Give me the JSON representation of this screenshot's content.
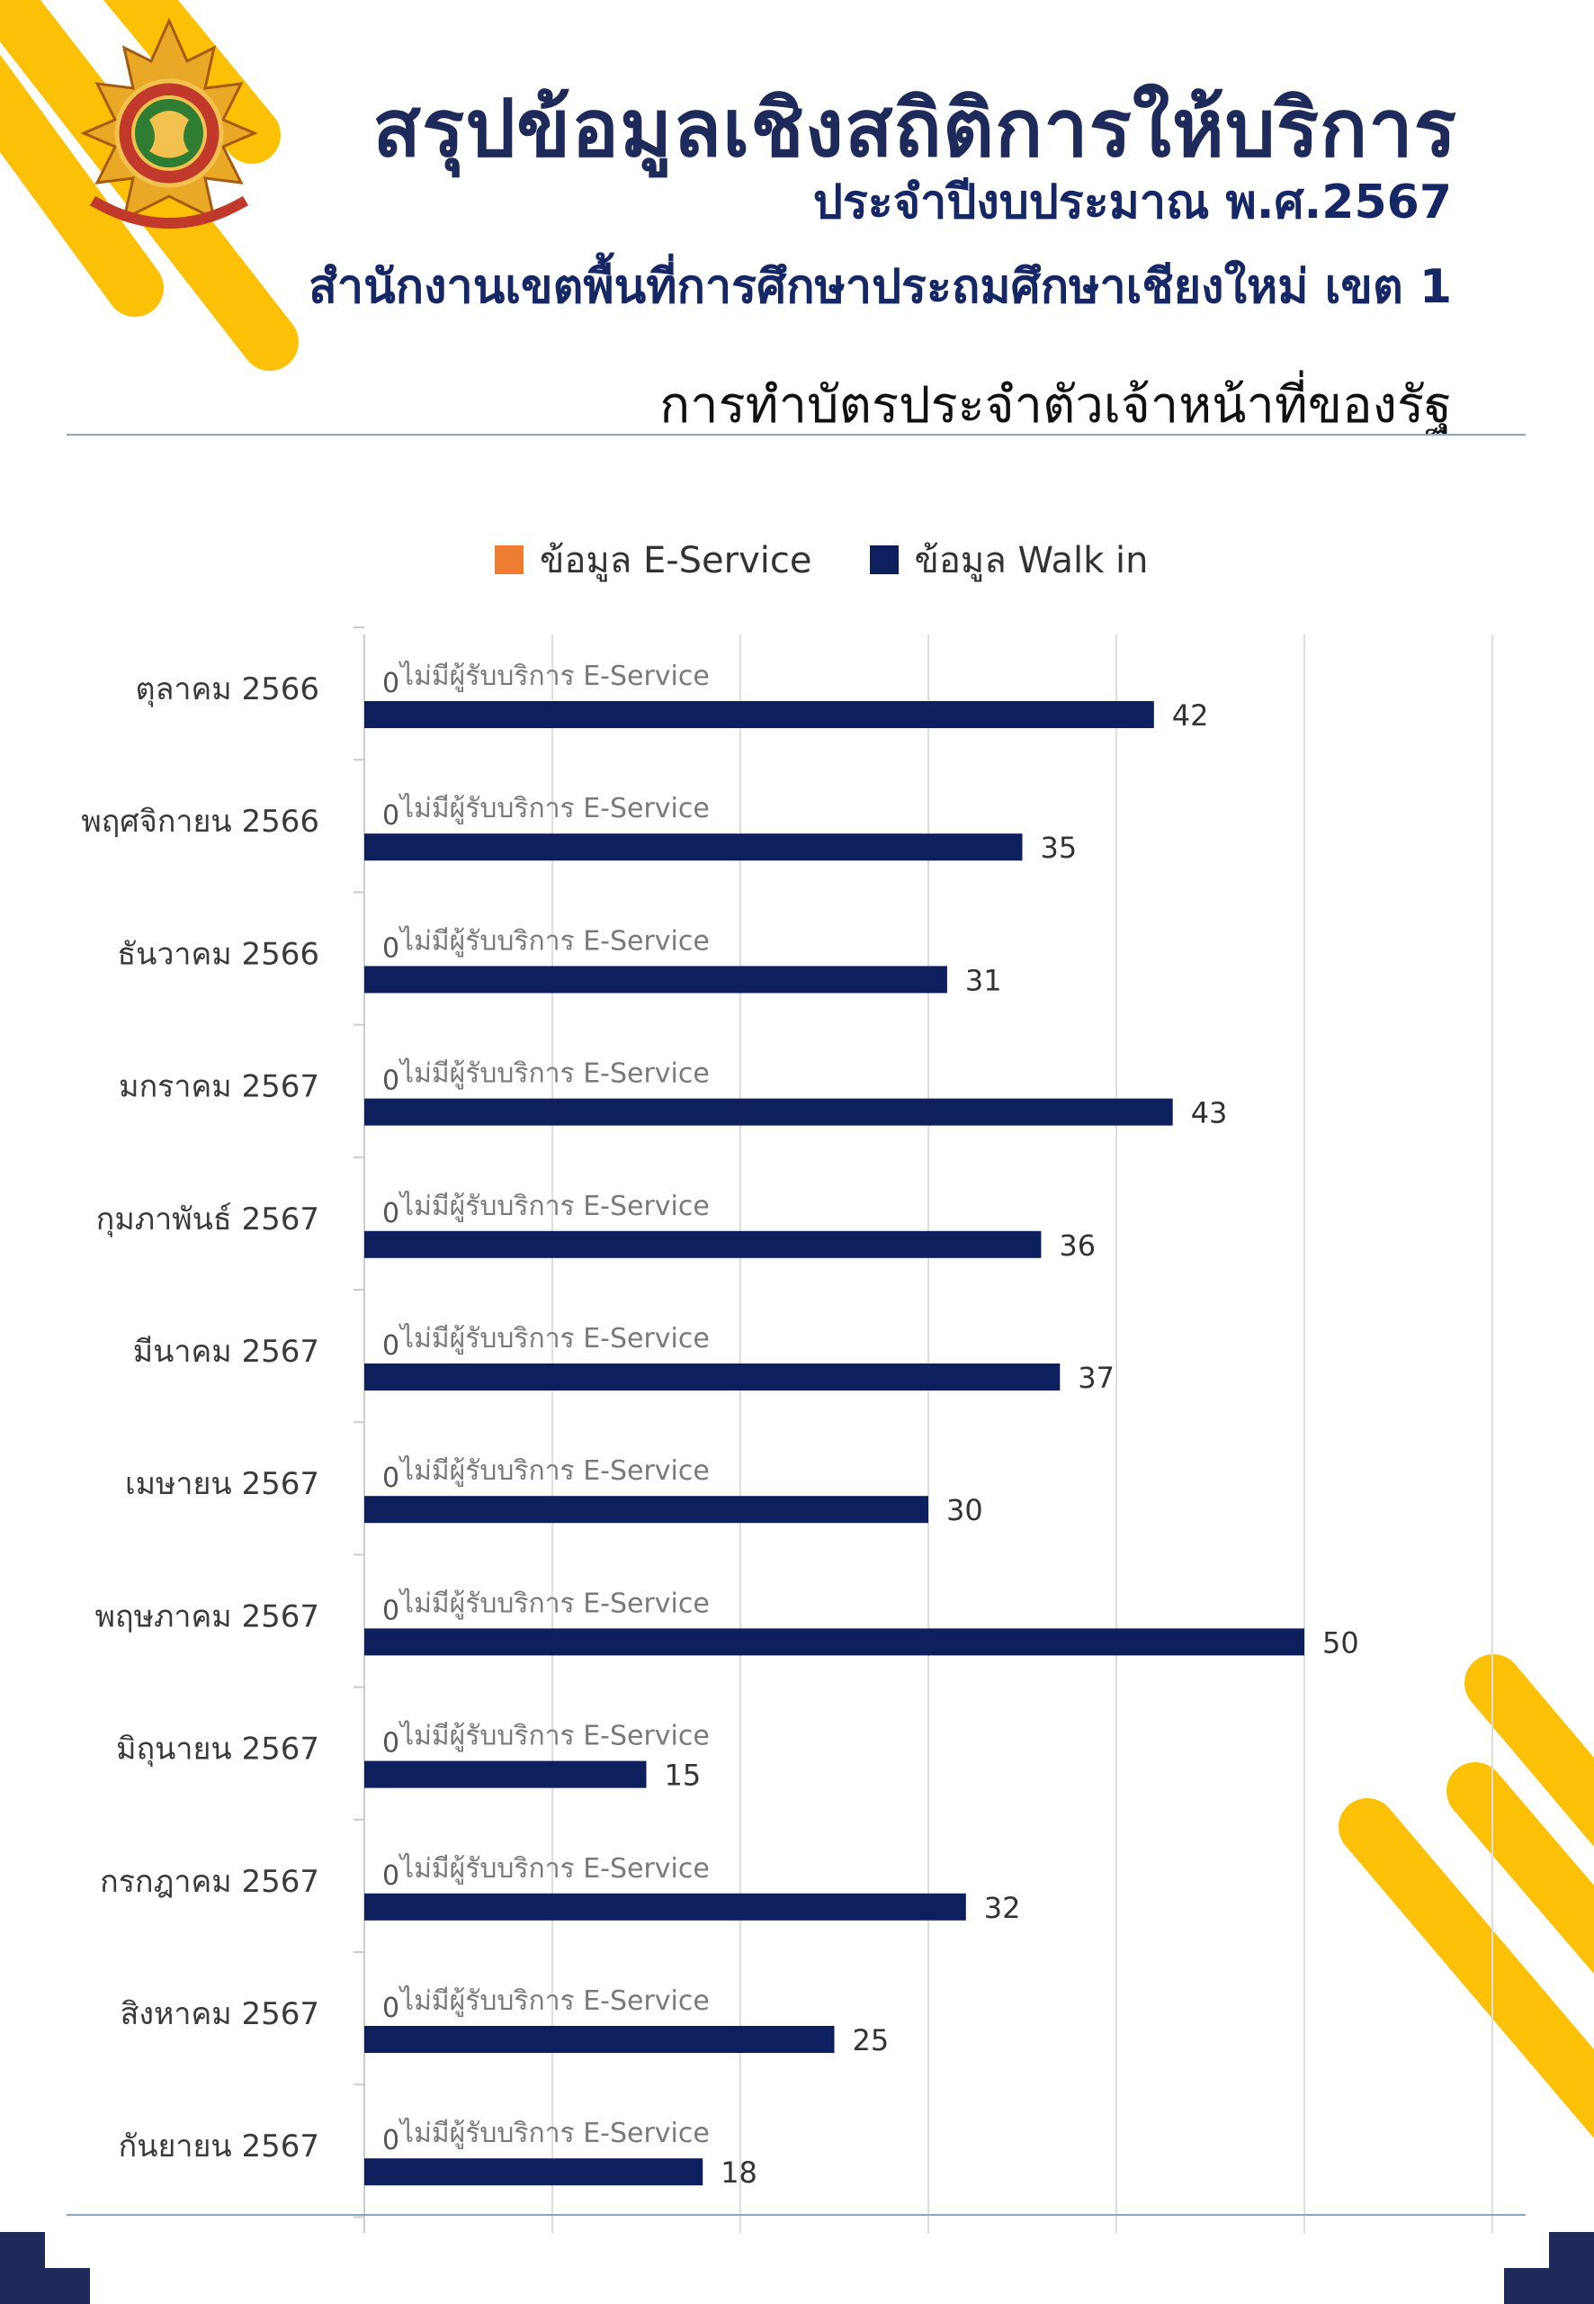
{
  "header": {
    "title": "สรุปข้อมูลเชิงสถิติการให้บริการ",
    "fiscal_year": "ประจำปีงบประมาณ พ.ศ.2567",
    "office": "สำนักงานเขตพื้นที่การศึกษาประถมศึกษาเชียงใหม่ เขต 1",
    "service": "การทำบัตรประจำตัวเจ้าหน้าที่ของรัฐ"
  },
  "colors": {
    "eservice": "#ed7d31",
    "walkin": "#0d1f5c",
    "accent_yellow": "#fcc106",
    "navy": "#1e2a5a"
  },
  "chart_data": {
    "type": "bar",
    "orientation": "horizontal",
    "categories": [
      "ตุลาคม 2566",
      "พฤศจิกายน 2566",
      "ธันวาคม 2566",
      "มกราคม 2567",
      "กุมภาพันธ์ 2567",
      "มีนาคม 2567",
      "เมษายน 2567",
      "พฤษภาคม 2567",
      "มิถุนายน 2567",
      "กรกฎาคม 2567",
      "สิงหาคม 2567",
      "กันยายน 2567"
    ],
    "series": [
      {
        "name": "ข้อมูล E-Service",
        "values": [
          0,
          0,
          0,
          0,
          0,
          0,
          0,
          0,
          0,
          0,
          0,
          0
        ]
      },
      {
        "name": "ข้อมูล Walk in",
        "values": [
          42,
          35,
          31,
          43,
          36,
          37,
          30,
          50,
          15,
          32,
          25,
          18
        ]
      }
    ],
    "bar_annotation": "ไม่มีผู้รับบริการ E-Service",
    "xlim": [
      0,
      60
    ],
    "grid": true,
    "legend_position": "top"
  }
}
